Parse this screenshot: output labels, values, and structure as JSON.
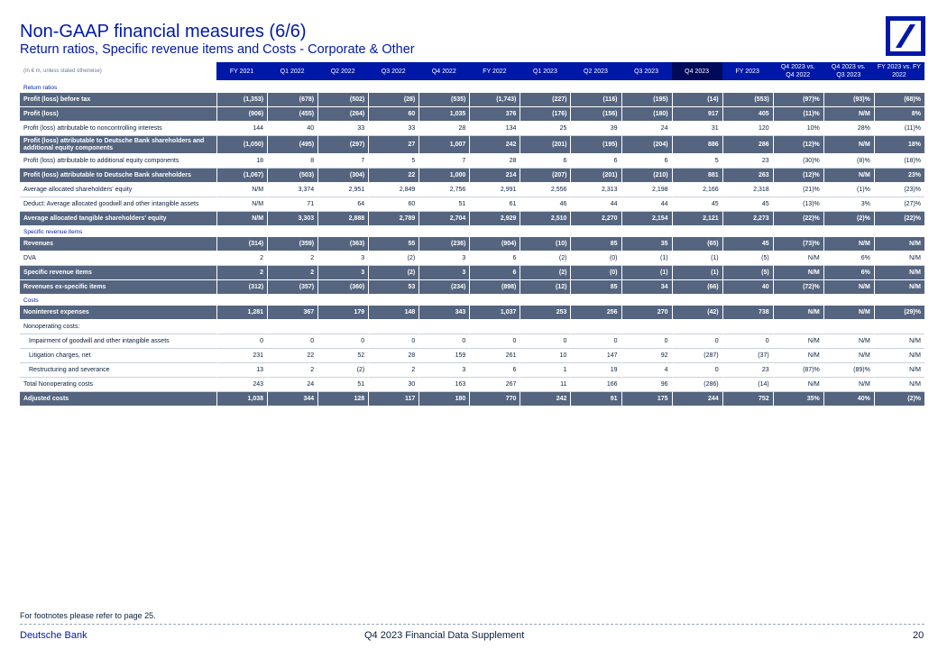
{
  "header": {
    "title": "Non-GAAP financial measures (6/6)",
    "subtitle": "Return ratios, Specific revenue items and Costs - Corporate & Other",
    "logo_icon": "deutsche-bank-slash-logo-icon",
    "brand_color": "#0018a8"
  },
  "table": {
    "unit_label": "(In € m, unless stated otherwise)",
    "columns": [
      "FY 2021",
      "Q1 2022",
      "Q2 2022",
      "Q3 2022",
      "Q4 2022",
      "FY 2022",
      "Q1 2023",
      "Q2 2023",
      "Q3 2023",
      "Q4 2023",
      "FY 2023",
      "Q4 2023 vs. Q4 2022",
      "Q4 2023 vs. Q3 2023",
      "FY 2023 vs. FY 2022"
    ],
    "rows": [
      {
        "type": "section",
        "label": "Return ratios",
        "values": []
      },
      {
        "type": "bold",
        "label": "Profit (loss) before tax",
        "values": [
          "(1,353)",
          "(678)",
          "(502)",
          "(28)",
          "(535)",
          "(1,743)",
          "(227)",
          "(116)",
          "(195)",
          "(14)",
          "(553)",
          "(97)%",
          "(93)%",
          "(68)%"
        ]
      },
      {
        "type": "bold",
        "label": "Profit (loss)",
        "values": [
          "(906)",
          "(455)",
          "(264)",
          "60",
          "1,035",
          "376",
          "(176)",
          "(156)",
          "(180)",
          "917",
          "405",
          "(11)%",
          "N/M",
          "8%"
        ]
      },
      {
        "type": "plain",
        "label": "Profit (loss) attributable to noncontrolling interests",
        "values": [
          "144",
          "40",
          "33",
          "33",
          "28",
          "134",
          "25",
          "39",
          "24",
          "31",
          "120",
          "10%",
          "28%",
          "(11)%"
        ]
      },
      {
        "type": "bold",
        "tall": true,
        "label": "Profit (loss) attributable to Deutsche Bank shareholders and additional equity components",
        "values": [
          "(1,050)",
          "(495)",
          "(297)",
          "27",
          "1,007",
          "242",
          "(201)",
          "(195)",
          "(204)",
          "886",
          "286",
          "(12)%",
          "N/M",
          "18%"
        ]
      },
      {
        "type": "plain",
        "label": "Profit (loss) attributable to additional equity components",
        "values": [
          "18",
          "8",
          "7",
          "5",
          "7",
          "28",
          "6",
          "6",
          "6",
          "5",
          "23",
          "(30)%",
          "(8)%",
          "(18)%"
        ]
      },
      {
        "type": "bold",
        "label": "Profit (loss) attributable to Deutsche Bank shareholders",
        "values": [
          "(1,067)",
          "(503)",
          "(304)",
          "22",
          "1,000",
          "214",
          "(207)",
          "(201)",
          "(210)",
          "881",
          "263",
          "(12)%",
          "N/M",
          "23%"
        ]
      },
      {
        "type": "plain",
        "label": "Average allocated shareholders' equity",
        "values": [
          "N/M",
          "3,374",
          "2,951",
          "2,849",
          "2,756",
          "2,991",
          "2,556",
          "2,313",
          "2,198",
          "2,166",
          "2,318",
          "(21)%",
          "(1)%",
          "(23)%"
        ]
      },
      {
        "type": "plain",
        "label": "Deduct: Average allocated goodwill and other intangible assets",
        "values": [
          "N/M",
          "71",
          "64",
          "60",
          "51",
          "61",
          "46",
          "44",
          "44",
          "45",
          "45",
          "(13)%",
          "3%",
          "(27)%"
        ]
      },
      {
        "type": "bold",
        "label": "Average allocated tangible shareholders' equity",
        "values": [
          "N/M",
          "3,303",
          "2,888",
          "2,789",
          "2,704",
          "2,929",
          "2,510",
          "2,270",
          "2,154",
          "2,121",
          "2,273",
          "(22)%",
          "(2)%",
          "(22)%"
        ]
      },
      {
        "type": "section",
        "label": "Specific revenue items",
        "values": []
      },
      {
        "type": "bold",
        "label": "Revenues",
        "values": [
          "(314)",
          "(359)",
          "(363)",
          "55",
          "(236)",
          "(904)",
          "(10)",
          "85",
          "35",
          "(65)",
          "45",
          "(73)%",
          "N/M",
          "N/M"
        ]
      },
      {
        "type": "plain",
        "label": "DVA",
        "values": [
          "2",
          "2",
          "3",
          "(2)",
          "3",
          "6",
          "(2)",
          "(0)",
          "(1)",
          "(1)",
          "(5)",
          "N/M",
          "6%",
          "N/M"
        ]
      },
      {
        "type": "bold",
        "label": "Specific revenue items",
        "values": [
          "2",
          "2",
          "3",
          "(2)",
          "3",
          "6",
          "(2)",
          "(0)",
          "(1)",
          "(1)",
          "(5)",
          "N/M",
          "6%",
          "N/M"
        ]
      },
      {
        "type": "bold",
        "label": "Revenues ex-specific items",
        "values": [
          "(312)",
          "(357)",
          "(360)",
          "53",
          "(234)",
          "(898)",
          "(12)",
          "85",
          "34",
          "(66)",
          "40",
          "(72)%",
          "N/M",
          "N/M"
        ]
      },
      {
        "type": "section",
        "label": "Costs",
        "values": []
      },
      {
        "type": "bold",
        "label": "Noninterest expenses",
        "values": [
          "1,281",
          "367",
          "179",
          "148",
          "343",
          "1,037",
          "253",
          "256",
          "270",
          "(42)",
          "738",
          "N/M",
          "N/M",
          "(29)%"
        ]
      },
      {
        "type": "plain",
        "label": "Nonoperating costs:",
        "values": [
          "",
          "",
          "",
          "",
          "",
          "",
          "",
          "",
          "",
          "",
          "",
          "",
          "",
          ""
        ]
      },
      {
        "type": "plain",
        "indent": true,
        "label": "Impairment of goodwill and other intangible assets",
        "values": [
          "0",
          "0",
          "0",
          "0",
          "0",
          "0",
          "0",
          "0",
          "0",
          "0",
          "0",
          "N/M",
          "N/M",
          "N/M"
        ]
      },
      {
        "type": "plain",
        "indent": true,
        "label": "Litigation charges, net",
        "values": [
          "231",
          "22",
          "52",
          "28",
          "159",
          "261",
          "10",
          "147",
          "92",
          "(287)",
          "(37)",
          "N/M",
          "N/M",
          "N/M"
        ]
      },
      {
        "type": "plain",
        "indent": true,
        "label": "Restructuring and severance",
        "values": [
          "13",
          "2",
          "(2)",
          "2",
          "3",
          "6",
          "1",
          "19",
          "4",
          "0",
          "23",
          "(87)%",
          "(89)%",
          "N/M"
        ]
      },
      {
        "type": "plain",
        "label": "Total Nonoperating costs",
        "values": [
          "243",
          "24",
          "51",
          "30",
          "163",
          "267",
          "11",
          "166",
          "96",
          "(286)",
          "(14)",
          "N/M",
          "N/M",
          "N/M"
        ]
      },
      {
        "type": "bold",
        "label": "Adjusted costs",
        "values": [
          "1,038",
          "344",
          "128",
          "117",
          "180",
          "770",
          "242",
          "91",
          "175",
          "244",
          "752",
          "35%",
          "40%",
          "(2)%"
        ]
      }
    ]
  },
  "footer": {
    "footnote": "For footnotes please refer to page 25.",
    "brand": "Deutsche Bank",
    "doc": "Q4 2023 Financial Data Supplement",
    "page": "20"
  }
}
